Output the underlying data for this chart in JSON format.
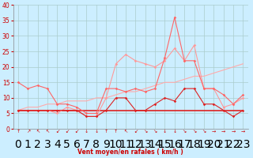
{
  "xlabel": "Vent moyen/en rafales ( km/h )",
  "background_color": "#cceeff",
  "grid_color": "#aacccc",
  "x_values": [
    0,
    1,
    2,
    3,
    4,
    5,
    6,
    7,
    8,
    9,
    10,
    11,
    12,
    13,
    14,
    15,
    16,
    17,
    18,
    19,
    20,
    21,
    22,
    23
  ],
  "wind_symbols": [
    "↑",
    "↗",
    "↖",
    "↖",
    "↙",
    "↙",
    "↙",
    "↓",
    "↓",
    "↑",
    "↑",
    "↖",
    "↙",
    "↘",
    "↘",
    "↓",
    "↓",
    "↘",
    "↘",
    "↘",
    "→",
    "→",
    "→",
    "→"
  ],
  "series": {
    "light_trend": {
      "color": "#ffaaaa",
      "linewidth": 0.8,
      "has_marker": false,
      "values": [
        6,
        7,
        7,
        8,
        8,
        9,
        9,
        9,
        10,
        10,
        11,
        12,
        12,
        13,
        14,
        15,
        15,
        16,
        17,
        17,
        18,
        19,
        20,
        21
      ]
    },
    "light_rafales": {
      "color": "#ff9999",
      "linewidth": 0.8,
      "has_marker": true,
      "values": [
        6,
        6,
        6,
        6,
        5,
        7,
        6,
        4,
        4,
        10,
        21,
        24,
        22,
        21,
        20,
        22,
        26,
        22,
        27,
        13,
        13,
        7,
        8,
        10
      ]
    },
    "medium_red": {
      "color": "#ff6666",
      "linewidth": 0.8,
      "has_marker": true,
      "values": [
        15,
        13,
        14,
        13,
        8,
        8,
        7,
        5,
        5,
        13,
        13,
        12,
        13,
        12,
        13,
        23,
        36,
        22,
        22,
        13,
        13,
        11,
        8,
        11
      ]
    },
    "dark_mean": {
      "color": "#dd2222",
      "linewidth": 0.8,
      "has_marker": true,
      "values": [
        6,
        6,
        6,
        6,
        6,
        6,
        6,
        4,
        4,
        6,
        10,
        10,
        6,
        6,
        8,
        10,
        9,
        13,
        13,
        8,
        8,
        6,
        4,
        6
      ]
    },
    "dark_flat": {
      "color": "#dd2222",
      "linewidth": 1.2,
      "has_marker": false,
      "values": [
        6,
        6,
        6,
        6,
        6,
        6,
        6,
        6,
        6,
        6,
        6,
        6,
        6,
        6,
        6,
        6,
        6,
        6,
        6,
        6,
        6,
        6,
        6,
        6
      ]
    }
  },
  "ylim": [
    0,
    40
  ],
  "yticks": [
    0,
    5,
    10,
    15,
    20,
    25,
    30,
    35,
    40
  ],
  "xlim": [
    -0.5,
    23.5
  ]
}
